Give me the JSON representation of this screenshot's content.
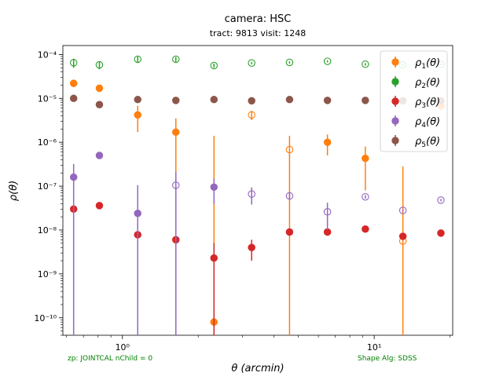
{
  "chart_data": {
    "type": "scatter",
    "title": "camera: HSC",
    "subtitle": "tract: 9813 visit: 1248",
    "xlabel": "θ (arcmin)",
    "ylabel": "ρ(θ)",
    "x_scale": "log",
    "y_scale": "log",
    "xlim": [
      0.58,
      20.5
    ],
    "ylim": [
      4e-11,
      0.00016
    ],
    "x_tick_labels": [
      "10⁰",
      "10¹"
    ],
    "y_tick_labels": [
      "10⁻¹⁰",
      "10⁻⁹",
      "10⁻⁸",
      "10⁻⁷",
      "10⁻⁶",
      "10⁻⁵",
      "10⁻⁴"
    ],
    "legend_position": "top-right",
    "grid": false,
    "markers_note": "filled = positive value, open = negative value (absolute shown)",
    "series": [
      {
        "name": "ρ1(θ)",
        "label_base": "ρ",
        "label_sub": "1",
        "label_suffix": "(θ)",
        "color": "#ff7f0e",
        "points": [
          {
            "x": 0.64,
            "y": 2.2e-05,
            "lo": 1.8e-05,
            "hi": 2.6e-05,
            "filled": true
          },
          {
            "x": 0.81,
            "y": 1.7e-05,
            "lo": 1.5e-05,
            "hi": 1.9e-05,
            "filled": true
          },
          {
            "x": 1.15,
            "y": 4.2e-06,
            "lo": 1.7e-06,
            "hi": 6.8e-06,
            "filled": true
          },
          {
            "x": 1.63,
            "y": 1.7e-06,
            "lo": 4e-11,
            "hi": 3.5e-06,
            "filled": true
          },
          {
            "x": 2.31,
            "y": 8e-11,
            "lo": 4e-11,
            "hi": 1.4e-06,
            "filled": true
          },
          {
            "x": 3.26,
            "y": 4.2e-06,
            "lo": 3.2e-06,
            "hi": 5.2e-06,
            "filled": false
          },
          {
            "x": 4.61,
            "y": 6.8e-07,
            "lo": 4e-11,
            "hi": 1.4e-06,
            "filled": false
          },
          {
            "x": 6.52,
            "y": 1e-06,
            "lo": 5e-07,
            "hi": 1.5e-06,
            "filled": true
          },
          {
            "x": 9.22,
            "y": 4.3e-07,
            "lo": 8e-08,
            "hi": 8e-07,
            "filled": true
          },
          {
            "x": 13.0,
            "y": 5.6e-09,
            "lo": 4e-11,
            "hi": 2.8e-07,
            "filled": false
          },
          {
            "x": 18.4,
            "y": 6.8e-06,
            "lo": 5.4e-06,
            "hi": 8.2e-06,
            "filled": true
          }
        ]
      },
      {
        "name": "ρ2(θ)",
        "label_base": "ρ",
        "label_sub": "2",
        "label_suffix": "(θ)",
        "color": "#2ca02c",
        "points": [
          {
            "x": 0.64,
            "y": 6.5e-05,
            "lo": 5e-05,
            "hi": 8e-05,
            "filled": false
          },
          {
            "x": 0.81,
            "y": 5.8e-05,
            "lo": 4.6e-05,
            "hi": 7e-05,
            "filled": false
          },
          {
            "x": 1.15,
            "y": 7.8e-05,
            "lo": 6.6e-05,
            "hi": 9e-05,
            "filled": false
          },
          {
            "x": 1.63,
            "y": 7.8e-05,
            "lo": 6.8e-05,
            "hi": 8.8e-05,
            "filled": false
          },
          {
            "x": 2.31,
            "y": 5.6e-05,
            "lo": 5e-05,
            "hi": 6.2e-05,
            "filled": false
          },
          {
            "x": 3.26,
            "y": 6.4e-05,
            "lo": 6e-05,
            "hi": 6.8e-05,
            "filled": false
          },
          {
            "x": 4.61,
            "y": 6.6e-05,
            "lo": 6.2e-05,
            "hi": 7e-05,
            "filled": false
          },
          {
            "x": 6.52,
            "y": 7e-05,
            "lo": 6.6e-05,
            "hi": 7.4e-05,
            "filled": false
          },
          {
            "x": 9.22,
            "y": 6e-05,
            "lo": 5.6e-05,
            "hi": 6.4e-05,
            "filled": false
          },
          {
            "x": 13.0,
            "y": 5.8e-05,
            "lo": 5.5e-05,
            "hi": 6.1e-05,
            "filled": false
          },
          {
            "x": 18.4,
            "y": 6e-05,
            "lo": 5.7e-05,
            "hi": 6.3e-05,
            "filled": false
          }
        ]
      },
      {
        "name": "ρ3(θ)",
        "label_base": "ρ",
        "label_sub": "3",
        "label_suffix": "(θ)",
        "color": "#d62728",
        "points": [
          {
            "x": 0.64,
            "y": 3e-08,
            "lo": 2.8e-08,
            "hi": 3.2e-08,
            "filled": true
          },
          {
            "x": 0.81,
            "y": 3.6e-08,
            "lo": 3.3e-08,
            "hi": 3.9e-08,
            "filled": true
          },
          {
            "x": 1.15,
            "y": 7.8e-09,
            "lo": 7.2e-09,
            "hi": 8.4e-09,
            "filled": true
          },
          {
            "x": 1.63,
            "y": 6e-09,
            "lo": 2e-09,
            "hi": 1e-08,
            "filled": true
          },
          {
            "x": 2.31,
            "y": 2.3e-09,
            "lo": 4e-11,
            "hi": 5e-09,
            "filled": true
          },
          {
            "x": 3.26,
            "y": 4e-09,
            "lo": 2e-09,
            "hi": 6e-09,
            "filled": true
          },
          {
            "x": 4.61,
            "y": 9e-09,
            "lo": 8.5e-09,
            "hi": 9.5e-09,
            "filled": true
          },
          {
            "x": 6.52,
            "y": 9e-09,
            "lo": 8.5e-09,
            "hi": 9.5e-09,
            "filled": true
          },
          {
            "x": 9.22,
            "y": 1.05e-08,
            "lo": 1e-08,
            "hi": 1.1e-08,
            "filled": true
          },
          {
            "x": 13.0,
            "y": 7.2e-09,
            "lo": 6.5e-09,
            "hi": 7.9e-09,
            "filled": true
          },
          {
            "x": 18.4,
            "y": 8.5e-09,
            "lo": 8e-09,
            "hi": 9e-09,
            "filled": true
          }
        ]
      },
      {
        "name": "ρ4(θ)",
        "label_base": "ρ",
        "label_sub": "4",
        "label_suffix": "(θ)",
        "color": "#9467bd",
        "points": [
          {
            "x": 0.64,
            "y": 1.6e-07,
            "lo": 4e-11,
            "hi": 3.2e-07,
            "filled": true
          },
          {
            "x": 0.81,
            "y": 5e-07,
            "lo": 4.2e-07,
            "hi": 5.8e-07,
            "filled": true
          },
          {
            "x": 1.15,
            "y": 2.4e-08,
            "lo": 4e-11,
            "hi": 1.05e-07,
            "filled": true
          },
          {
            "x": 1.63,
            "y": 1.05e-07,
            "lo": 4e-11,
            "hi": 2.1e-07,
            "filled": false
          },
          {
            "x": 2.31,
            "y": 9.5e-08,
            "lo": 4e-08,
            "hi": 1.5e-07,
            "filled": true
          },
          {
            "x": 3.26,
            "y": 6.6e-08,
            "lo": 3.8e-08,
            "hi": 9.4e-08,
            "filled": false
          },
          {
            "x": 4.61,
            "y": 6e-08,
            "lo": 5e-08,
            "hi": 7e-08,
            "filled": false
          },
          {
            "x": 6.52,
            "y": 2.6e-08,
            "lo": 1e-08,
            "hi": 4.2e-08,
            "filled": false
          },
          {
            "x": 9.22,
            "y": 5.7e-08,
            "lo": 5.2e-08,
            "hi": 6.2e-08,
            "filled": false
          },
          {
            "x": 13.0,
            "y": 2.8e-08,
            "lo": 2.6e-08,
            "hi": 3e-08,
            "filled": false
          },
          {
            "x": 18.4,
            "y": 4.8e-08,
            "lo": 4.5e-08,
            "hi": 5.1e-08,
            "filled": false
          }
        ]
      },
      {
        "name": "ρ5(θ)",
        "label_base": "ρ",
        "label_sub": "5",
        "label_suffix": "(θ)",
        "color": "#8c564b",
        "points": [
          {
            "x": 0.64,
            "y": 1e-05,
            "lo": 9.6e-06,
            "hi": 1.04e-05,
            "filled": true
          },
          {
            "x": 0.81,
            "y": 7.2e-06,
            "lo": 6.8e-06,
            "hi": 7.6e-06,
            "filled": true
          },
          {
            "x": 1.15,
            "y": 9.4e-06,
            "lo": 9e-06,
            "hi": 9.8e-06,
            "filled": true
          },
          {
            "x": 1.63,
            "y": 9e-06,
            "lo": 8.7e-06,
            "hi": 9.3e-06,
            "filled": true
          },
          {
            "x": 2.31,
            "y": 9.4e-06,
            "lo": 9.1e-06,
            "hi": 9.7e-06,
            "filled": true
          },
          {
            "x": 3.26,
            "y": 8.8e-06,
            "lo": 8.5e-06,
            "hi": 9.1e-06,
            "filled": true
          },
          {
            "x": 4.61,
            "y": 9.4e-06,
            "lo": 9.1e-06,
            "hi": 9.7e-06,
            "filled": true
          },
          {
            "x": 6.52,
            "y": 9e-06,
            "lo": 8.7e-06,
            "hi": 9.3e-06,
            "filled": true
          },
          {
            "x": 9.22,
            "y": 9e-06,
            "lo": 8.7e-06,
            "hi": 9.3e-06,
            "filled": true
          },
          {
            "x": 13.0,
            "y": 8.8e-06,
            "lo": 8.5e-06,
            "hi": 9.1e-06,
            "filled": true
          },
          {
            "x": 18.4,
            "y": 8.8e-06,
            "lo": 8.5e-06,
            "hi": 9.1e-06,
            "filled": true
          }
        ]
      }
    ]
  },
  "annotations": {
    "left_footer": "zp: JOINTCAL nChild = 0",
    "right_footer": "Shape Alg: SDSS",
    "footer_color": "#008000"
  }
}
